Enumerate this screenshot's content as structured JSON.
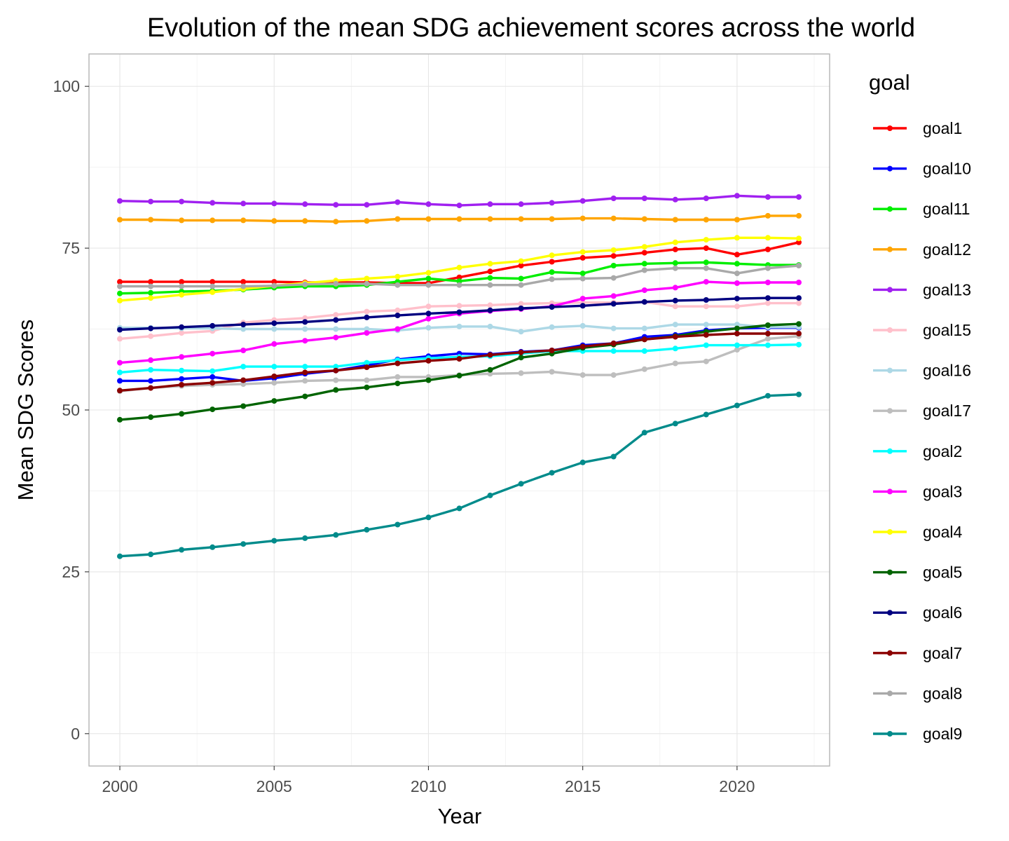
{
  "chart_data": {
    "type": "line",
    "title": "Evolution of the mean SDG achievement scores across the world",
    "xlabel": "Year",
    "ylabel": "Mean SDG Scores",
    "xlim": [
      1999,
      2023
    ],
    "ylim": [
      -5,
      105
    ],
    "x_ticks": [
      2000,
      2005,
      2010,
      2015,
      2020
    ],
    "y_ticks": [
      0,
      25,
      50,
      75,
      100
    ],
    "grid": true,
    "legend_title": "goal",
    "legend_position": "right",
    "x": [
      2000,
      2001,
      2002,
      2003,
      2004,
      2005,
      2006,
      2007,
      2008,
      2009,
      2010,
      2011,
      2012,
      2013,
      2014,
      2015,
      2016,
      2017,
      2018,
      2019,
      2020,
      2021,
      2022
    ],
    "series": [
      {
        "name": "goal1",
        "color": "#ff0000",
        "values": [
          69.8,
          69.8,
          69.8,
          69.8,
          69.8,
          69.8,
          69.7,
          69.7,
          69.7,
          69.6,
          69.6,
          70.5,
          71.4,
          72.3,
          72.9,
          73.5,
          73.8,
          74.3,
          74.8,
          75.0,
          74.0,
          74.8,
          75.9
        ]
      },
      {
        "name": "goal10",
        "color": "#0000ff",
        "values": [
          54.5,
          54.5,
          54.8,
          55.1,
          54.5,
          54.9,
          55.6,
          56.1,
          56.9,
          57.8,
          58.3,
          58.7,
          58.6,
          59.0,
          59.2,
          60.0,
          60.3,
          61.3,
          61.6,
          62.3,
          62.6,
          62.7,
          62.7
        ]
      },
      {
        "name": "goal11",
        "color": "#00ee00",
        "values": [
          68.0,
          68.1,
          68.3,
          68.4,
          68.6,
          68.9,
          69.1,
          69.1,
          69.3,
          69.8,
          70.3,
          69.9,
          70.4,
          70.3,
          71.3,
          71.1,
          72.3,
          72.6,
          72.7,
          72.8,
          72.6,
          72.4,
          72.4
        ]
      },
      {
        "name": "goal12",
        "color": "#ffa500",
        "values": [
          79.4,
          79.4,
          79.3,
          79.3,
          79.3,
          79.2,
          79.2,
          79.1,
          79.2,
          79.5,
          79.5,
          79.5,
          79.5,
          79.5,
          79.5,
          79.6,
          79.6,
          79.5,
          79.4,
          79.4,
          79.4,
          80.0,
          80.0
        ]
      },
      {
        "name": "goal13",
        "color": "#a020f0",
        "values": [
          82.3,
          82.2,
          82.2,
          82.0,
          81.9,
          81.9,
          81.8,
          81.7,
          81.7,
          82.1,
          81.8,
          81.6,
          81.8,
          81.8,
          82.0,
          82.3,
          82.7,
          82.7,
          82.5,
          82.7,
          83.1,
          82.9,
          82.9
        ]
      },
      {
        "name": "goal15",
        "color": "#ffc0cb",
        "values": [
          61.0,
          61.4,
          61.9,
          62.2,
          63.5,
          63.9,
          64.2,
          64.7,
          65.2,
          65.4,
          66.0,
          66.1,
          66.2,
          66.4,
          66.5,
          66.6,
          66.6,
          66.7,
          66.0,
          66.0,
          66.0,
          66.5,
          66.5
        ]
      },
      {
        "name": "goal16",
        "color": "#add8e6",
        "values": [
          62.7,
          62.7,
          62.6,
          62.6,
          62.5,
          62.5,
          62.5,
          62.5,
          62.5,
          62.3,
          62.7,
          62.9,
          62.9,
          62.1,
          62.8,
          63.0,
          62.6,
          62.6,
          63.2,
          63.2,
          63.2,
          62.8,
          62.8
        ]
      },
      {
        "name": "goal17",
        "color": "#bebebe",
        "values": [
          52.9,
          53.4,
          53.7,
          53.9,
          54.0,
          54.2,
          54.5,
          54.6,
          54.6,
          55.1,
          55.1,
          55.4,
          55.6,
          55.7,
          55.9,
          55.4,
          55.4,
          56.3,
          57.2,
          57.5,
          59.3,
          61.0,
          61.4
        ]
      },
      {
        "name": "goal2",
        "color": "#00ffff",
        "values": [
          55.8,
          56.2,
          56.1,
          56.0,
          56.7,
          56.7,
          56.7,
          56.7,
          57.3,
          57.7,
          58.0,
          58.2,
          58.3,
          58.7,
          59.1,
          59.1,
          59.1,
          59.1,
          59.5,
          60.0,
          60.0,
          60.0,
          60.1
        ]
      },
      {
        "name": "goal3",
        "color": "#ff00ff",
        "values": [
          57.3,
          57.7,
          58.2,
          58.7,
          59.2,
          60.2,
          60.7,
          61.2,
          61.9,
          62.5,
          64.1,
          64.9,
          65.3,
          65.6,
          66.0,
          67.2,
          67.6,
          68.5,
          68.9,
          69.8,
          69.6,
          69.7,
          69.7
        ]
      },
      {
        "name": "goal4",
        "color": "#ffff00",
        "values": [
          66.9,
          67.3,
          67.8,
          68.2,
          68.7,
          69.2,
          69.6,
          70.0,
          70.3,
          70.6,
          71.2,
          72.0,
          72.6,
          73.0,
          73.9,
          74.4,
          74.7,
          75.2,
          75.9,
          76.3,
          76.6,
          76.6,
          76.5
        ]
      },
      {
        "name": "goal5",
        "color": "#006400",
        "values": [
          48.5,
          48.9,
          49.4,
          50.1,
          50.6,
          51.4,
          52.1,
          53.1,
          53.5,
          54.1,
          54.6,
          55.3,
          56.2,
          58.1,
          58.7,
          59.6,
          60.1,
          60.9,
          61.4,
          62.1,
          62.6,
          63.1,
          63.3
        ]
      },
      {
        "name": "goal6",
        "color": "#000080",
        "values": [
          62.4,
          62.6,
          62.8,
          63.0,
          63.2,
          63.4,
          63.6,
          63.9,
          64.3,
          64.6,
          64.9,
          65.1,
          65.4,
          65.7,
          65.9,
          66.1,
          66.4,
          66.7,
          66.9,
          67.0,
          67.2,
          67.3,
          67.3
        ]
      },
      {
        "name": "goal7",
        "color": "#8b0000",
        "values": [
          53.0,
          53.4,
          53.9,
          54.2,
          54.6,
          55.2,
          55.8,
          56.1,
          56.6,
          57.2,
          57.6,
          57.9,
          58.5,
          58.9,
          59.2,
          59.8,
          60.3,
          60.9,
          61.3,
          61.6,
          61.8,
          61.8,
          61.8
        ]
      },
      {
        "name": "goal8",
        "color": "#a9a9a9",
        "values": [
          69.1,
          69.1,
          69.1,
          69.1,
          69.1,
          69.2,
          69.4,
          69.5,
          69.5,
          69.3,
          69.3,
          69.3,
          69.3,
          69.3,
          70.2,
          70.3,
          70.4,
          71.6,
          71.9,
          71.9,
          71.1,
          71.9,
          72.3
        ]
      },
      {
        "name": "goal9",
        "color": "#008b8b",
        "values": [
          27.4,
          27.7,
          28.4,
          28.8,
          29.3,
          29.8,
          30.2,
          30.7,
          31.5,
          32.3,
          33.4,
          34.8,
          36.8,
          38.6,
          40.3,
          41.9,
          42.8,
          46.5,
          47.9,
          49.3,
          50.7,
          52.2,
          52.4
        ]
      }
    ]
  }
}
